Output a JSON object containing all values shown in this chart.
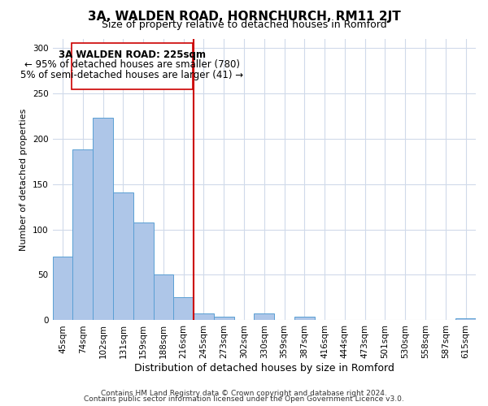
{
  "title": "3A, WALDEN ROAD, HORNCHURCH, RM11 2JT",
  "subtitle": "Size of property relative to detached houses in Romford",
  "xlabel": "Distribution of detached houses by size in Romford",
  "ylabel": "Number of detached properties",
  "bar_labels": [
    "45sqm",
    "74sqm",
    "102sqm",
    "131sqm",
    "159sqm",
    "188sqm",
    "216sqm",
    "245sqm",
    "273sqm",
    "302sqm",
    "330sqm",
    "359sqm",
    "387sqm",
    "416sqm",
    "444sqm",
    "473sqm",
    "501sqm",
    "530sqm",
    "558sqm",
    "587sqm",
    "615sqm"
  ],
  "bar_heights": [
    70,
    188,
    223,
    141,
    108,
    50,
    25,
    8,
    4,
    0,
    8,
    0,
    4,
    0,
    0,
    0,
    0,
    0,
    0,
    0,
    2
  ],
  "bar_color": "#aec6e8",
  "bar_edge_color": "#5a9fd4",
  "vline_x": 6.5,
  "vline_color": "#cc0000",
  "ylim": [
    0,
    310
  ],
  "yticks": [
    0,
    50,
    100,
    150,
    200,
    250,
    300
  ],
  "annotation_title": "3A WALDEN ROAD: 225sqm",
  "annotation_line1": "← 95% of detached houses are smaller (780)",
  "annotation_line2": "5% of semi-detached houses are larger (41) →",
  "annotation_box_color": "#ffffff",
  "annotation_box_edge": "#cc0000",
  "footer1": "Contains HM Land Registry data © Crown copyright and database right 2024.",
  "footer2": "Contains public sector information licensed under the Open Government Licence v3.0.",
  "title_fontsize": 11,
  "subtitle_fontsize": 9,
  "xlabel_fontsize": 9,
  "ylabel_fontsize": 8,
  "tick_fontsize": 7.5,
  "annotation_fontsize": 8.5,
  "footer_fontsize": 6.5,
  "bg_color": "#ffffff",
  "grid_color": "#d0daea"
}
